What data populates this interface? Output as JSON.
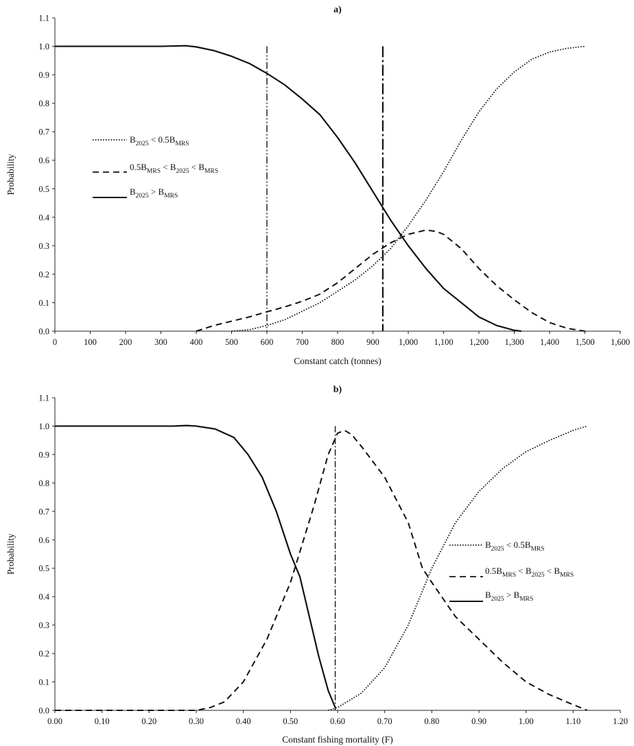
{
  "chart_data": [
    {
      "type": "line",
      "title": "a)",
      "xlabel": "Constant catch (tonnes)",
      "ylabel": "Probability",
      "xlim": [
        0,
        1600
      ],
      "ylim": [
        0,
        1.1
      ],
      "x_tick_labels": [
        "0",
        "100",
        "200",
        "300",
        "400",
        "500",
        "600",
        "700",
        "800",
        "900",
        "1,000",
        "1,100",
        "1,200",
        "1,300",
        "1,400",
        "1,500",
        "1,600"
      ],
      "y_tick_labels": [
        "0.0",
        "0.1",
        "0.2",
        "0.3",
        "0.4",
        "0.5",
        "0.6",
        "0.7",
        "0.8",
        "0.9",
        "1.0",
        "1.1"
      ],
      "grid": false,
      "legend_position": "left",
      "vlines": [
        {
          "x": 600,
          "style": "dash-dot-dot"
        },
        {
          "x": 928,
          "style": "long-dash-dot"
        }
      ],
      "series": [
        {
          "legend": {
            "pre": "B",
            "s1": "2025",
            "mid": " < 0.5B",
            "s2": "MRS",
            "post": ""
          },
          "style": "dotted",
          "points": [
            [
              500,
              0
            ],
            [
              550,
              0.005
            ],
            [
              600,
              0.02
            ],
            [
              650,
              0.04
            ],
            [
              700,
              0.07
            ],
            [
              750,
              0.1
            ],
            [
              800,
              0.14
            ],
            [
              850,
              0.18
            ],
            [
              900,
              0.23
            ],
            [
              950,
              0.29
            ],
            [
              1000,
              0.37
            ],
            [
              1050,
              0.46
            ],
            [
              1100,
              0.56
            ],
            [
              1150,
              0.67
            ],
            [
              1200,
              0.77
            ],
            [
              1250,
              0.85
            ],
            [
              1300,
              0.91
            ],
            [
              1350,
              0.955
            ],
            [
              1400,
              0.98
            ],
            [
              1450,
              0.993
            ],
            [
              1500,
              1.0
            ]
          ]
        },
        {
          "legend": {
            "pre": "0.5B",
            "s1": "MRS",
            "mid": " < B",
            "s2": "2025",
            "mid2": " < B",
            "s3": "MRS"
          },
          "style": "dashed",
          "points": [
            [
              400,
              0
            ],
            [
              450,
              0.02
            ],
            [
              500,
              0.035
            ],
            [
              550,
              0.05
            ],
            [
              600,
              0.068
            ],
            [
              650,
              0.085
            ],
            [
              700,
              0.105
            ],
            [
              750,
              0.13
            ],
            [
              800,
              0.17
            ],
            [
              850,
              0.22
            ],
            [
              900,
              0.27
            ],
            [
              950,
              0.31
            ],
            [
              1000,
              0.34
            ],
            [
              1050,
              0.355
            ],
            [
              1080,
              0.35
            ],
            [
              1100,
              0.34
            ],
            [
              1150,
              0.29
            ],
            [
              1200,
              0.22
            ],
            [
              1250,
              0.16
            ],
            [
              1300,
              0.11
            ],
            [
              1350,
              0.065
            ],
            [
              1400,
              0.03
            ],
            [
              1450,
              0.01
            ],
            [
              1500,
              0
            ]
          ]
        },
        {
          "legend": {
            "pre": "B",
            "s1": "2025",
            "mid": " > B",
            "s2": "MRS",
            "post": ""
          },
          "style": "solid",
          "points": [
            [
              0,
              1.0
            ],
            [
              300,
              1.0
            ],
            [
              370,
              1.002
            ],
            [
              400,
              0.998
            ],
            [
              450,
              0.985
            ],
            [
              500,
              0.965
            ],
            [
              550,
              0.94
            ],
            [
              600,
              0.905
            ],
            [
              650,
              0.865
            ],
            [
              700,
              0.815
            ],
            [
              750,
              0.76
            ],
            [
              800,
              0.68
            ],
            [
              850,
              0.59
            ],
            [
              900,
              0.49
            ],
            [
              950,
              0.39
            ],
            [
              1000,
              0.3
            ],
            [
              1050,
              0.22
            ],
            [
              1100,
              0.15
            ],
            [
              1150,
              0.1
            ],
            [
              1200,
              0.05
            ],
            [
              1250,
              0.02
            ],
            [
              1300,
              0.003
            ],
            [
              1320,
              0
            ]
          ]
        }
      ]
    },
    {
      "type": "line",
      "title": "b)",
      "xlabel": "Constant fishing mortality (F)",
      "ylabel": "Probability",
      "xlim": [
        0,
        1.2
      ],
      "ylim": [
        0,
        1.1
      ],
      "x_tick_labels": [
        "0.00",
        "0.10",
        "0.20",
        "0.30",
        "0.40",
        "0.50",
        "0.60",
        "0.70",
        "0.80",
        "0.90",
        "1.00",
        "1.10",
        "1.20"
      ],
      "y_tick_labels": [
        "0.0",
        "0.1",
        "0.2",
        "0.3",
        "0.4",
        "0.5",
        "0.6",
        "0.7",
        "0.8",
        "0.9",
        "1.0",
        "1.1"
      ],
      "grid": false,
      "legend_position": "right",
      "vlines": [
        {
          "x": 0.595,
          "style": "dash-dot"
        }
      ],
      "series": [
        {
          "legend": {
            "pre": "B",
            "s1": "2025",
            "mid": " < 0.5B",
            "s2": "MRS",
            "post": ""
          },
          "style": "dotted",
          "points": [
            [
              0.58,
              0
            ],
            [
              0.6,
              0.01
            ],
            [
              0.62,
              0.03
            ],
            [
              0.65,
              0.06
            ],
            [
              0.7,
              0.15
            ],
            [
              0.75,
              0.3
            ],
            [
              0.8,
              0.5
            ],
            [
              0.85,
              0.66
            ],
            [
              0.9,
              0.77
            ],
            [
              0.95,
              0.85
            ],
            [
              1.0,
              0.91
            ],
            [
              1.05,
              0.95
            ],
            [
              1.1,
              0.985
            ],
            [
              1.13,
              1.0
            ]
          ]
        },
        {
          "legend": {
            "pre": "0.5B",
            "s1": "MRS",
            "mid": " < B",
            "s2": "2025",
            "mid2": " < B",
            "s3": "MRS"
          },
          "style": "dashed",
          "points": [
            [
              0,
              0
            ],
            [
              0.3,
              0
            ],
            [
              0.33,
              0.01
            ],
            [
              0.36,
              0.03
            ],
            [
              0.4,
              0.1
            ],
            [
              0.45,
              0.25
            ],
            [
              0.5,
              0.45
            ],
            [
              0.55,
              0.72
            ],
            [
              0.58,
              0.9
            ],
            [
              0.6,
              0.975
            ],
            [
              0.615,
              0.985
            ],
            [
              0.63,
              0.97
            ],
            [
              0.65,
              0.93
            ],
            [
              0.7,
              0.82
            ],
            [
              0.75,
              0.66
            ],
            [
              0.78,
              0.5
            ],
            [
              0.8,
              0.45
            ],
            [
              0.85,
              0.33
            ],
            [
              0.9,
              0.25
            ],
            [
              0.95,
              0.17
            ],
            [
              1.0,
              0.1
            ],
            [
              1.05,
              0.055
            ],
            [
              1.1,
              0.02
            ],
            [
              1.13,
              0
            ]
          ]
        },
        {
          "legend": {
            "pre": "B",
            "s1": "2025",
            "mid": " > B",
            "s2": "MRS",
            "post": ""
          },
          "style": "solid",
          "points": [
            [
              0,
              1.0
            ],
            [
              0.25,
              1.0
            ],
            [
              0.28,
              1.002
            ],
            [
              0.3,
              1.0
            ],
            [
              0.34,
              0.99
            ],
            [
              0.38,
              0.96
            ],
            [
              0.41,
              0.9
            ],
            [
              0.44,
              0.82
            ],
            [
              0.47,
              0.7
            ],
            [
              0.5,
              0.55
            ],
            [
              0.52,
              0.47
            ],
            [
              0.54,
              0.33
            ],
            [
              0.56,
              0.19
            ],
            [
              0.58,
              0.07
            ],
            [
              0.595,
              0.01
            ]
          ]
        }
      ]
    }
  ]
}
